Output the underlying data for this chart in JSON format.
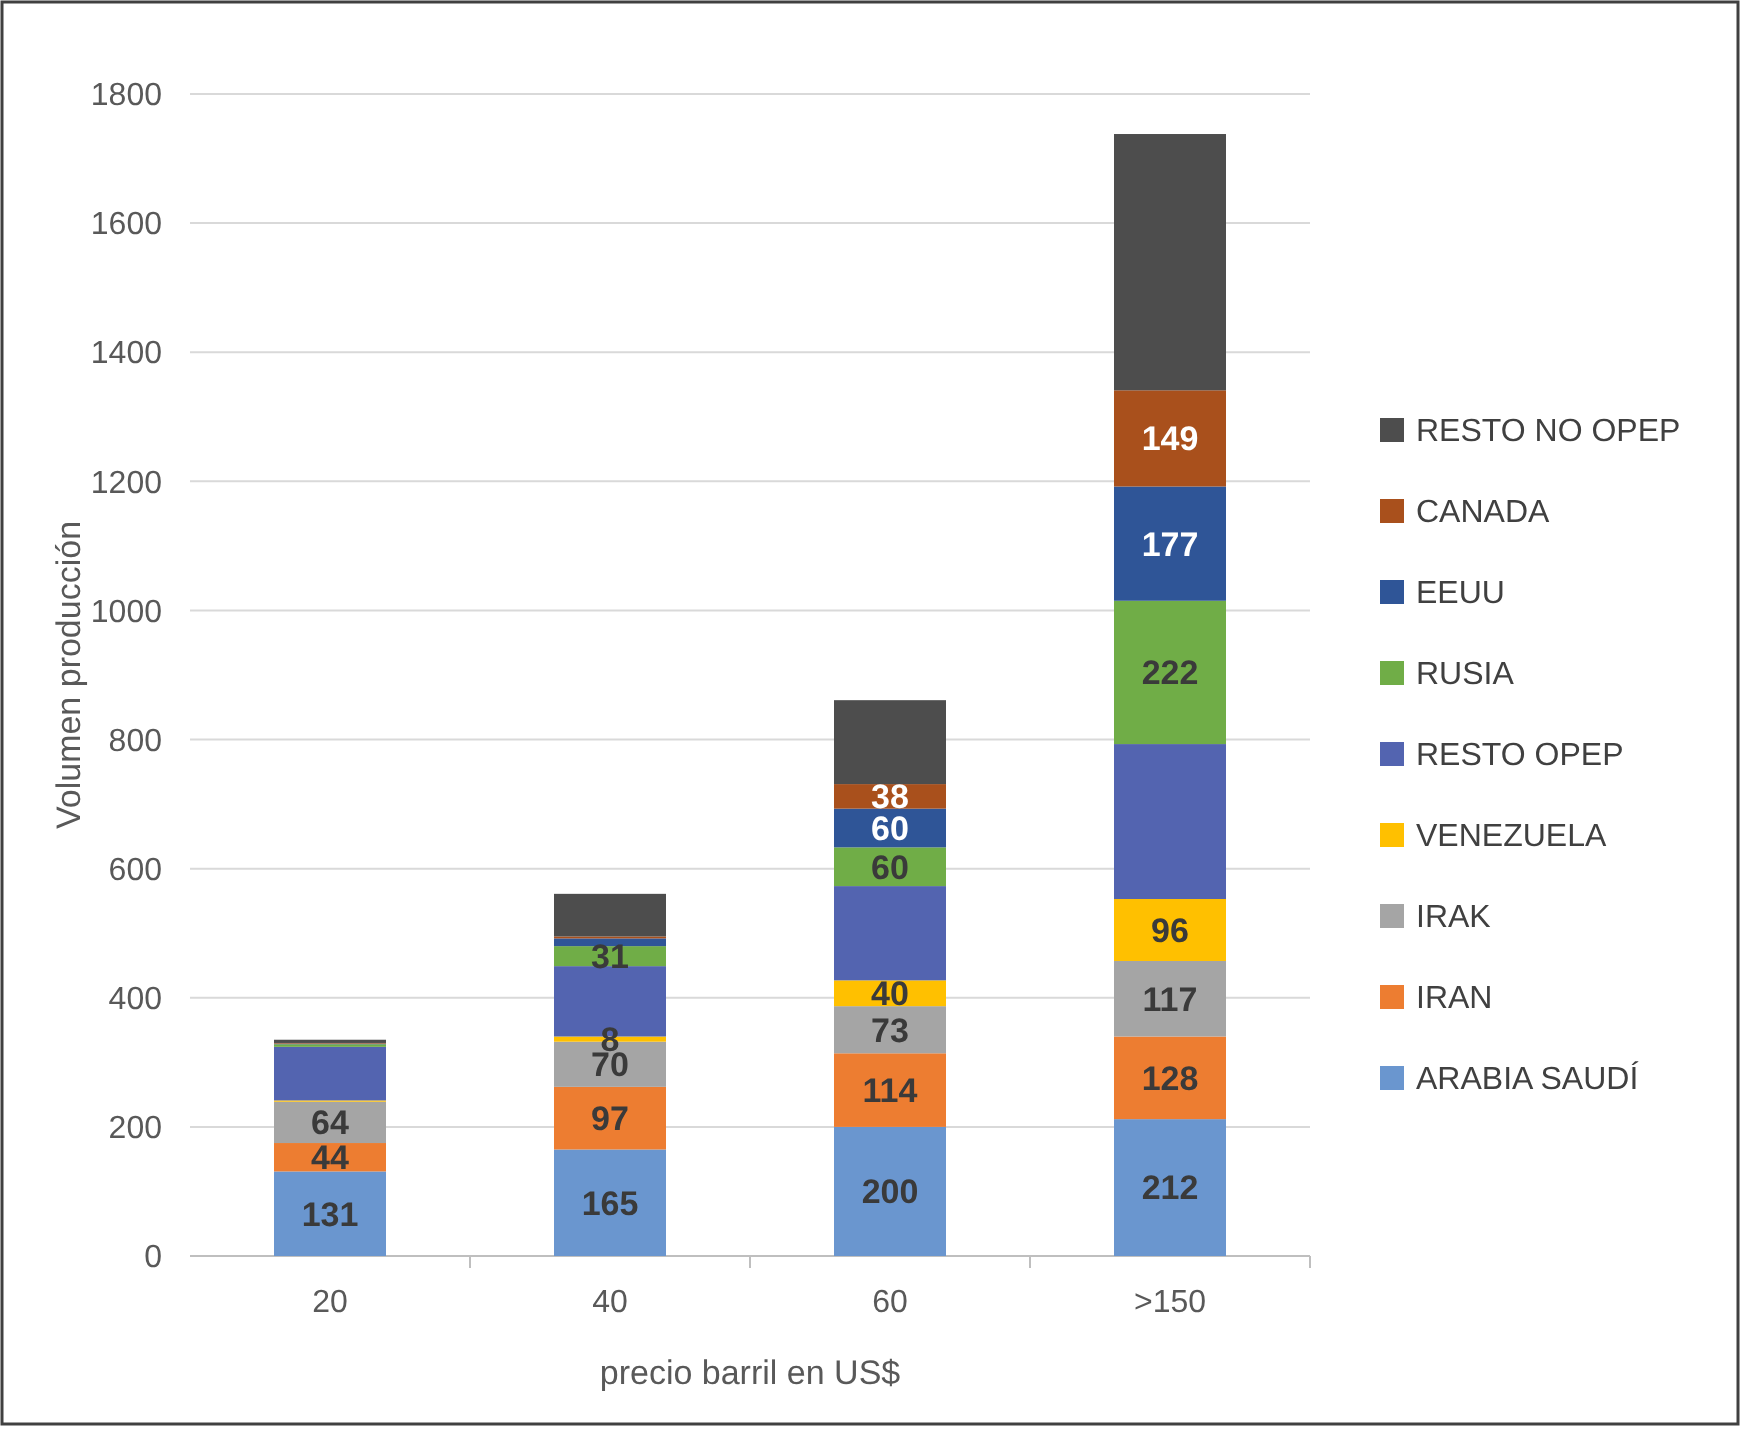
{
  "chart_data": {
    "type": "bar",
    "stacked": true,
    "xlabel": "precio barril en US$",
    "ylabel": "Volumen producción",
    "categories": [
      "20",
      "40",
      "60",
      ">150"
    ],
    "ylim": [
      0,
      1800
    ],
    "yticks": [
      0,
      200,
      400,
      600,
      800,
      1000,
      1200,
      1400,
      1600,
      1800
    ],
    "grid": "y",
    "legend": "right",
    "series": [
      {
        "name": "ARABIA SAUDÍ",
        "color": "#6a96cf",
        "values": [
          131,
          165,
          200,
          212
        ],
        "value_labels": [
          "131",
          "165",
          "200",
          "212"
        ]
      },
      {
        "name": "IRAN",
        "color": "#ed7d31",
        "values": [
          44,
          97,
          114,
          128
        ],
        "value_labels": [
          "44",
          "97",
          "114",
          "128"
        ]
      },
      {
        "name": "IRAK",
        "color": "#a5a5a5",
        "values": [
          64,
          70,
          73,
          117
        ],
        "value_labels": [
          "64",
          "70",
          "73",
          "117"
        ]
      },
      {
        "name": "VENEZUELA",
        "color": "#ffc000",
        "values": [
          2,
          8,
          40,
          96
        ],
        "value_labels": [
          null,
          "8",
          "40",
          "96"
        ]
      },
      {
        "name": "RESTO OPEP",
        "color": "#5364b0",
        "values": [
          83,
          109,
          146,
          240
        ],
        "value_labels": [
          null,
          null,
          null,
          null
        ]
      },
      {
        "name": "RUSIA",
        "color": "#70ad47",
        "values": [
          4,
          31,
          60,
          222
        ],
        "value_labels": [
          null,
          "31",
          "60",
          "222"
        ]
      },
      {
        "name": "EEUU",
        "color": "#2f5597",
        "values": [
          1,
          12,
          60,
          177
        ],
        "value_labels": [
          null,
          null,
          "60",
          "177"
        ]
      },
      {
        "name": "CANADA",
        "color": "#a9501c",
        "values": [
          1,
          3,
          38,
          149
        ],
        "value_labels": [
          null,
          null,
          "38",
          "149"
        ]
      },
      {
        "name": "RESTO NO OPEP",
        "color": "#4d4d4d",
        "values": [
          5,
          66,
          130,
          397
        ],
        "value_labels": [
          null,
          null,
          null,
          null
        ]
      }
    ]
  }
}
